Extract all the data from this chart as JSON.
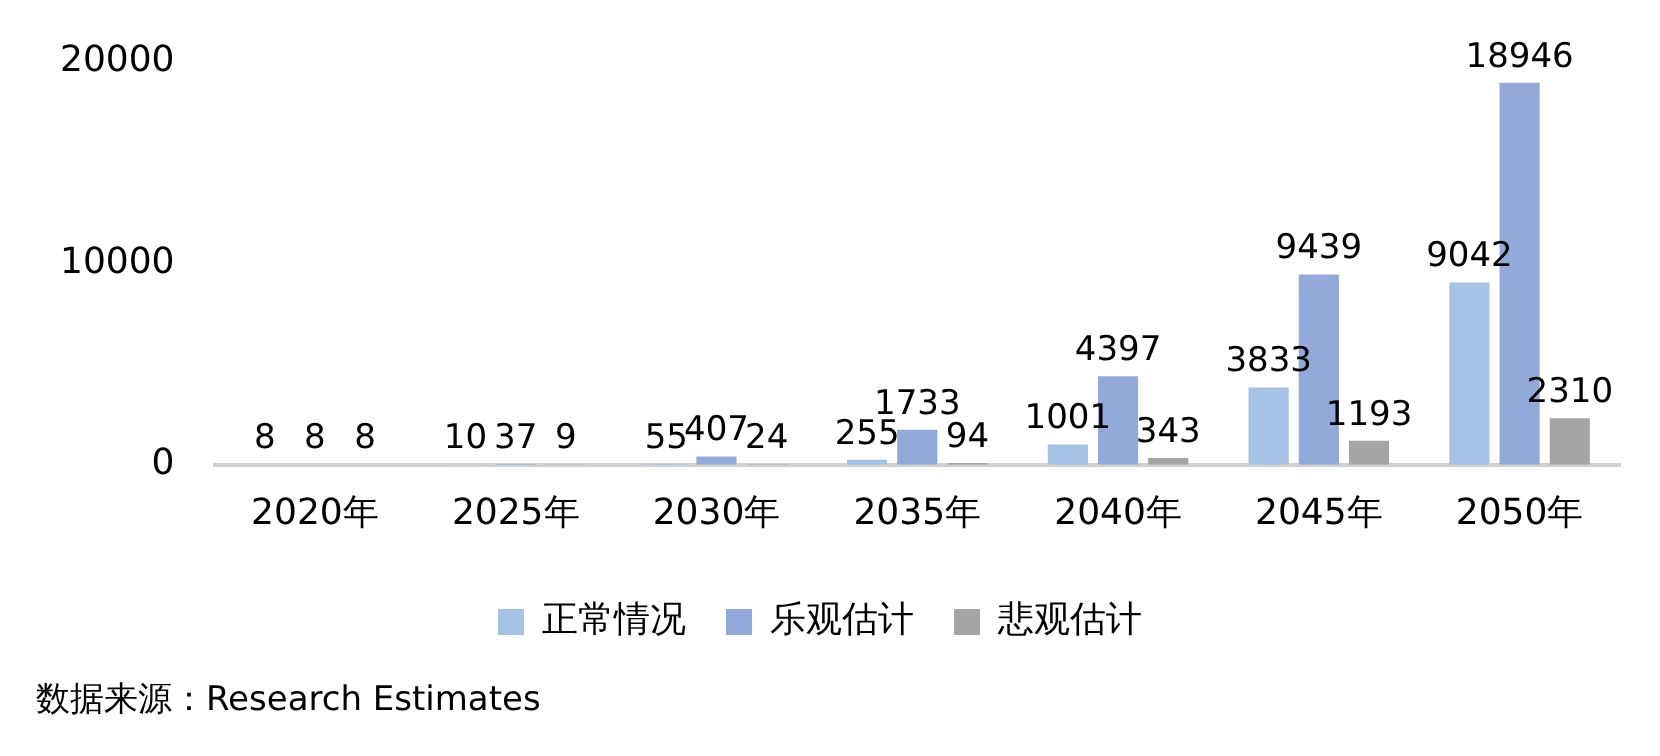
{
  "chart_data": {
    "type": "bar",
    "categories": [
      "2020年",
      "2025年",
      "2030年",
      "2035年",
      "2040年",
      "2045年",
      "2050年"
    ],
    "series": [
      {
        "name": "正常情况",
        "color": "#a6c2e4",
        "values": [
          8,
          10,
          55,
          255,
          1001,
          3833,
          9042
        ]
      },
      {
        "name": "乐观估计",
        "color": "#93a9d9",
        "values": [
          8,
          37,
          407,
          1733,
          4397,
          9439,
          18946
        ]
      },
      {
        "name": "悲观估计",
        "color": "#a5a5a5",
        "values": [
          8,
          9,
          24,
          94,
          343,
          1193,
          2310
        ]
      }
    ],
    "ylim": [
      0,
      20000
    ],
    "yticks": [
      0,
      10000,
      20000
    ],
    "grid": false,
    "legend": "bottom",
    "data_labels": true,
    "annotations": [
      "数据来源：Research Estimates"
    ]
  }
}
